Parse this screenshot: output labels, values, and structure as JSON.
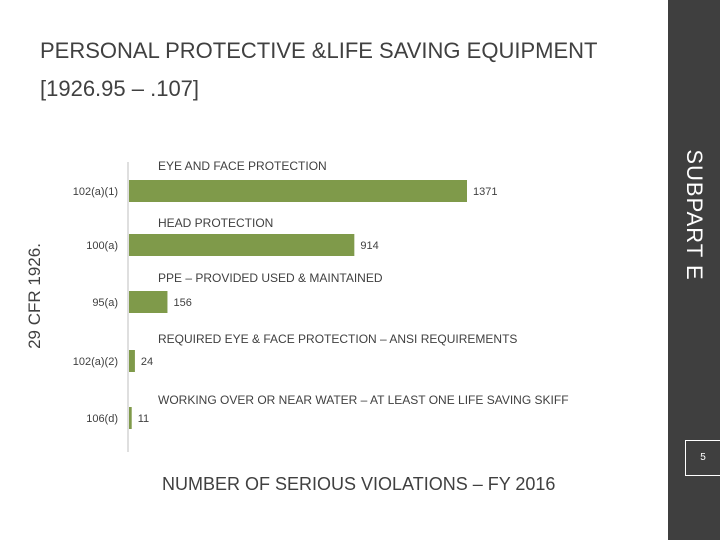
{
  "title": {
    "line1": "PERSONAL PROTECTIVE  &LIFE SAVING EQUIPMENT",
    "line2": "[1926.95 – .107]"
  },
  "sidebar_label": "SUBPART E",
  "left_label": "29 CFR 1926.",
  "page_number": "5",
  "colors": {
    "bar": "#7f9a4a",
    "sidebar": "#3f3f3f",
    "text": "#404040",
    "axis": "#bfbfbf"
  },
  "chart_data": {
    "type": "bar",
    "orientation": "horizontal",
    "title": "NUMBER OF SERIOUS VIOLATIONS – FY 2016",
    "categories": [
      "102(a)(1)",
      "100(a)",
      "95(a)",
      "102(a)(2)",
      "106(d)"
    ],
    "descriptions": [
      "EYE AND FACE PROTECTION",
      "HEAD PROTECTION",
      "PPE – PROVIDED USED & MAINTAINED",
      "REQUIRED EYE & FACE PROTECTION – ANSI REQUIREMENTS",
      "WORKING OVER OR NEAR WATER – AT LEAST ONE LIFE SAVING SKIFF"
    ],
    "values": [
      1371,
      914,
      156,
      24,
      11
    ],
    "xlim": [
      0,
      1371
    ],
    "grid": false,
    "legend": "none"
  }
}
